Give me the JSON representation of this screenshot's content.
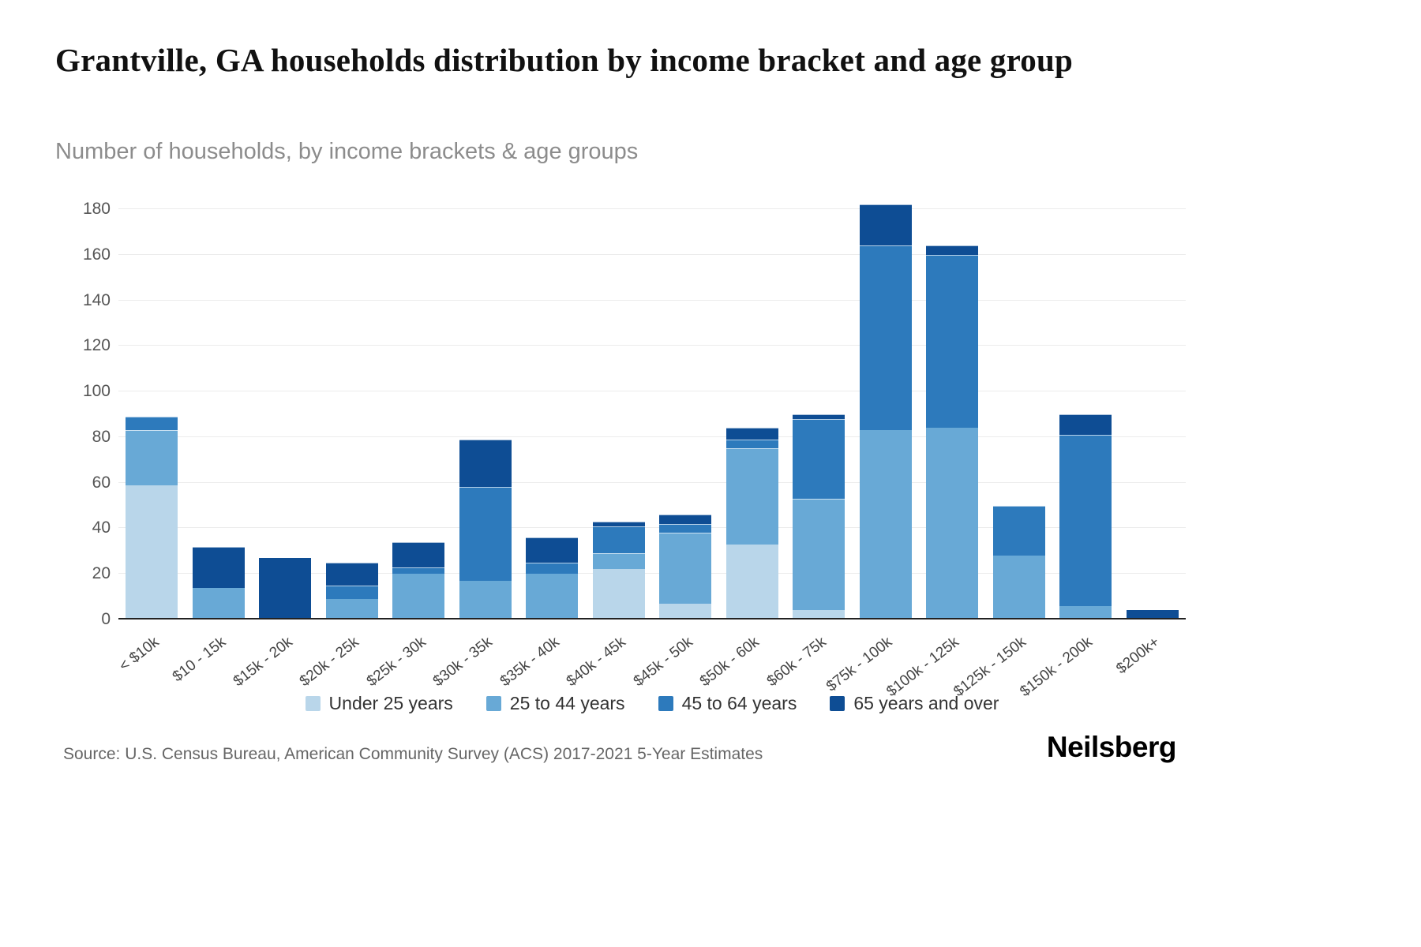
{
  "header": {
    "title": "Grantville, GA households distribution by income bracket and age group",
    "subtitle": "Number of households, by income brackets & age groups"
  },
  "footer": {
    "source": "Source: U.S. Census Bureau, American Community Survey (ACS) 2017-2021 5-Year Estimates",
    "brand": "Neilsberg"
  },
  "chart_data": {
    "type": "bar",
    "stacked": true,
    "title": "Grantville, GA households distribution by income bracket and age group",
    "subtitle": "Number of households, by income brackets & age groups",
    "xlabel": "",
    "ylabel": "Number of households",
    "ylim": [
      0,
      180
    ],
    "ytick_step": 20,
    "grid": true,
    "legend_position": "bottom",
    "categories": [
      "< $10k",
      "$10 - 15k",
      "$15k - 20k",
      "$20k - 25k",
      "$25k - 30k",
      "$30k - 35k",
      "$35k - 40k",
      "$40k - 45k",
      "$45k - 50k",
      "$50k - 60k",
      "$60k - 75k",
      "$75k - 100k",
      "$100k - 125k",
      "$125k - 150k",
      "$150k - 200k",
      "$200k+"
    ],
    "series": [
      {
        "name": "Under 25 years",
        "color": "#b9d6ea",
        "values": [
          59,
          0,
          0,
          0,
          0,
          0,
          0,
          22,
          7,
          33,
          4,
          0,
          0,
          0,
          0,
          0
        ]
      },
      {
        "name": "25 to 44 years",
        "color": "#68a9d6",
        "values": [
          24,
          14,
          0,
          9,
          20,
          17,
          20,
          7,
          31,
          42,
          49,
          83,
          84,
          28,
          6,
          0
        ]
      },
      {
        "name": "45 to 64 years",
        "color": "#2d7abc",
        "values": [
          6,
          0,
          0,
          6,
          3,
          41,
          5,
          12,
          4,
          4,
          35,
          81,
          76,
          22,
          75,
          0
        ]
      },
      {
        "name": "65 years and over",
        "color": "#0e4d94",
        "values": [
          0,
          18,
          27,
          10,
          11,
          21,
          11,
          2,
          4,
          5,
          2,
          18,
          4,
          0,
          9,
          4
        ]
      }
    ],
    "totals": [
      89,
      32,
      27,
      25,
      34,
      79,
      36,
      43,
      46,
      84,
      90,
      182,
      164,
      50,
      90,
      4
    ]
  }
}
